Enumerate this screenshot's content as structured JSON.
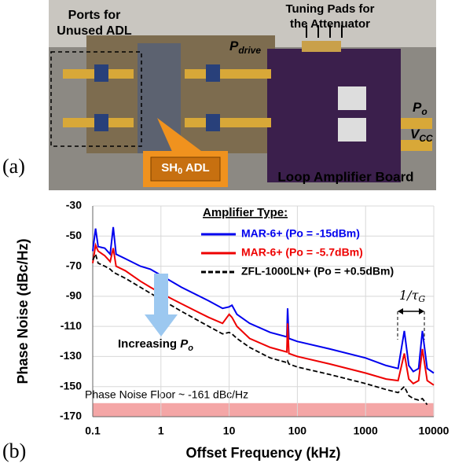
{
  "panel_a": {
    "label": "(a)",
    "ports": [
      "Ports for",
      "Unused ADL"
    ],
    "tuning": [
      "Tuning Pads for",
      "the Attenuator"
    ],
    "pdrive": {
      "text": "P",
      "sub": "drive"
    },
    "po": {
      "text": "P",
      "sub": "o"
    },
    "vcc": {
      "text": "V",
      "sub": "CC"
    },
    "adl": {
      "text": "SH",
      "sub": "0",
      "rest": " ADL"
    },
    "board": "Loop Amplifier Board"
  },
  "chart_data": {
    "type": "line",
    "panel_label": "(b)",
    "xlabel": "Offset Frequency (kHz)",
    "ylabel": "Phase Noise (dBc/Hz)",
    "log_x": true,
    "grid": true,
    "xlim": [
      0.1,
      10000
    ],
    "xticks": [
      0.1,
      1,
      10,
      100,
      1000,
      10000
    ],
    "ylim": [
      -170,
      -30
    ],
    "yticks": [
      -30,
      -50,
      -70,
      -90,
      -110,
      -130,
      -150,
      -170
    ],
    "legend_title": "Amplifier Type:",
    "x": [
      0.1,
      0.11,
      0.12,
      0.15,
      0.18,
      0.2,
      0.22,
      0.3,
      0.5,
      0.7,
      1,
      2,
      5,
      8,
      10,
      11,
      13,
      20,
      40,
      70,
      72,
      75,
      100,
      300,
      1000,
      2000,
      3000,
      3700,
      4300,
      5000,
      6000,
      6800,
      8000,
      10000
    ],
    "series": [
      {
        "name": "MAR-6+  (Po = -15dBm)",
        "color": "#0000ee",
        "dash": false,
        "values": [
          -60,
          -45,
          -57,
          -58,
          -62,
          -44,
          -62,
          -65,
          -70,
          -72,
          -76,
          -84,
          -93,
          -98,
          -97,
          -96,
          -102,
          -108,
          -114,
          -117,
          -98,
          -118,
          -120,
          -125,
          -131,
          -136,
          -138,
          -113,
          -136,
          -140,
          -138,
          -113,
          -138,
          -141
        ]
      },
      {
        "name": "MAR-6+  (Po = -5.7dBm)",
        "color": "#ee0000",
        "dash": false,
        "values": [
          -68,
          -56,
          -60,
          -63,
          -67,
          -58,
          -70,
          -73,
          -80,
          -84,
          -88,
          -95,
          -104,
          -108,
          -102,
          -104,
          -110,
          -118,
          -124,
          -127,
          -108,
          -128,
          -130,
          -135,
          -141,
          -145,
          -146,
          -128,
          -145,
          -148,
          -146,
          -125,
          -146,
          -149
        ]
      },
      {
        "name": "ZFL-1000LN+  (Po = +0.5dBm)",
        "color": "#000000",
        "dash": true,
        "values": [
          -66,
          -62,
          -68,
          -70,
          -72,
          -74,
          -75,
          -78,
          -84,
          -88,
          -92,
          -100,
          -110,
          -115,
          -114,
          -115,
          -118,
          -124,
          -131,
          -134,
          -133,
          -135,
          -137,
          -142,
          -148,
          -152,
          -154,
          -150,
          -156,
          -158,
          -159,
          -158,
          -162,
          null
        ]
      }
    ],
    "noise_floor": -161,
    "noise_floor_label": "Phase Noise Floor ~ -161 dBc/Hz",
    "increasing": {
      "text": "Increasing ",
      "symbol": "P",
      "sub": "o"
    },
    "tau": {
      "text": "1/τ",
      "sub": "G"
    }
  }
}
